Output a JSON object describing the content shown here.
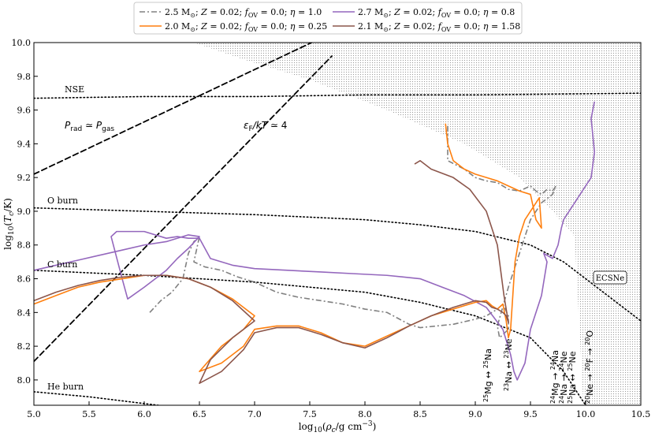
{
  "chart_data": {
    "type": "line",
    "xlabel": "log₁₀(ρc/g cm⁻³)",
    "ylabel": "log₁₀(Tc/K)",
    "xlim": [
      5.0,
      10.5
    ],
    "ylim": [
      7.85,
      10.0
    ],
    "xticks": [
      "5.0",
      "5.5",
      "6.0",
      "6.5",
      "7.0",
      "7.5",
      "8.0",
      "8.5",
      "9.0",
      "9.5",
      "10.0",
      "10.5"
    ],
    "yticks": [
      "8.0",
      "8.2",
      "8.4",
      "8.6",
      "8.8",
      "9.0",
      "9.2",
      "9.4",
      "9.6",
      "9.8",
      "10.0"
    ],
    "legend_position": "top-center",
    "grid": false,
    "series": [
      {
        "name": "2.5 M⊙; Z = 0.02; f_OV = 0.0; η = 1.0",
        "color": "#808080",
        "dash": "7,3,2,3",
        "x": [
          6.05,
          6.15,
          6.25,
          6.35,
          6.4,
          6.45,
          6.5,
          6.45,
          6.55,
          6.7,
          6.85,
          7.0,
          7.2,
          7.4,
          7.6,
          7.8,
          8.0,
          8.2,
          8.4,
          8.5,
          8.8,
          9.0,
          9.1,
          9.15,
          9.2,
          9.25,
          9.3,
          9.3,
          9.22,
          9.2,
          9.3,
          9.4,
          9.5,
          9.6,
          9.7,
          9.73,
          9.7,
          9.65,
          9.6,
          9.55,
          9.5,
          9.4,
          9.3,
          9.2,
          9.1,
          9.0,
          8.9,
          8.75,
          8.75
        ],
        "y": [
          8.4,
          8.47,
          8.52,
          8.6,
          8.75,
          8.82,
          8.85,
          8.7,
          8.67,
          8.65,
          8.61,
          8.58,
          8.52,
          8.49,
          8.47,
          8.45,
          8.42,
          8.4,
          8.33,
          8.31,
          8.33,
          8.36,
          8.38,
          8.4,
          8.42,
          8.45,
          8.38,
          8.3,
          8.25,
          8.32,
          8.55,
          8.75,
          8.95,
          9.05,
          9.1,
          9.15,
          9.12,
          9.13,
          9.1,
          9.12,
          9.15,
          9.12,
          9.13,
          9.17,
          9.18,
          9.2,
          9.25,
          9.3,
          9.52
        ]
      },
      {
        "name": "2.7 M⊙; Z = 0.02; f_OV = 0.0; η = 0.8",
        "color": "#9467bd",
        "dash": "",
        "x": [
          5.0,
          5.2,
          5.4,
          5.6,
          5.8,
          6.0,
          6.2,
          6.4,
          6.5,
          6.4,
          6.3,
          6.2,
          6.0,
          5.85,
          5.8,
          5.7,
          5.75,
          6.0,
          6.2,
          6.3,
          6.4,
          6.45,
          6.5,
          6.6,
          6.8,
          7.0,
          7.3,
          7.6,
          7.9,
          8.2,
          8.5,
          8.7,
          8.9,
          9.1,
          9.25,
          9.32,
          9.35,
          9.38,
          9.45,
          9.5,
          9.6,
          9.65,
          9.62,
          9.7,
          9.75,
          9.78,
          9.8,
          9.85,
          9.9,
          9.95,
          10.0,
          10.05,
          10.08,
          10.05,
          10.08
        ],
        "y": [
          8.65,
          8.68,
          8.71,
          8.74,
          8.77,
          8.8,
          8.82,
          8.86,
          8.85,
          8.78,
          8.72,
          8.65,
          8.55,
          8.48,
          8.6,
          8.85,
          8.88,
          8.88,
          8.84,
          8.85,
          8.84,
          8.84,
          8.84,
          8.72,
          8.68,
          8.66,
          8.65,
          8.64,
          8.63,
          8.62,
          8.6,
          8.55,
          8.5,
          8.43,
          8.3,
          8.15,
          8.05,
          8.0,
          8.1,
          8.3,
          8.5,
          8.7,
          8.75,
          8.72,
          8.8,
          8.9,
          8.95,
          9.0,
          9.05,
          9.1,
          9.15,
          9.2,
          9.35,
          9.55,
          9.65
        ]
      },
      {
        "name": "2.0 M⊙; Z = 0.02; f_OV = 0.0; η = 0.25",
        "color": "#ff7f0e",
        "dash": "",
        "x": [
          5.0,
          5.2,
          5.4,
          5.6,
          5.8,
          6.0,
          6.2,
          6.4,
          6.6,
          6.8,
          7.0,
          6.9,
          6.7,
          6.5,
          6.7,
          6.9,
          7.0,
          7.2,
          7.4,
          7.6,
          7.8,
          8.0,
          8.2,
          8.4,
          8.6,
          8.8,
          9.0,
          9.1,
          9.15,
          9.2,
          9.25,
          9.28,
          9.3,
          9.32,
          9.34,
          9.36,
          9.4,
          9.45,
          9.5,
          9.55,
          9.58,
          9.6,
          9.55,
          9.5,
          9.4,
          9.3,
          9.2,
          9.1,
          9.0,
          8.9,
          8.8,
          8.75,
          8.73
        ],
        "y": [
          8.45,
          8.5,
          8.55,
          8.58,
          8.6,
          8.62,
          8.62,
          8.6,
          8.55,
          8.48,
          8.38,
          8.3,
          8.2,
          8.05,
          8.1,
          8.2,
          8.3,
          8.32,
          8.32,
          8.28,
          8.22,
          8.2,
          8.26,
          8.32,
          8.38,
          8.42,
          8.46,
          8.47,
          8.44,
          8.42,
          8.45,
          8.35,
          8.25,
          8.3,
          8.5,
          8.7,
          8.85,
          8.95,
          9.0,
          9.05,
          9.08,
          8.9,
          8.95,
          9.1,
          9.12,
          9.15,
          9.18,
          9.2,
          9.22,
          9.25,
          9.3,
          9.4,
          9.52
        ]
      },
      {
        "name": "2.1 M⊙; Z = 0.02; f_OV = 0.0; η = 1.58",
        "color": "#8c564b",
        "dash": "",
        "x": [
          5.0,
          5.2,
          5.4,
          5.6,
          5.8,
          6.0,
          6.2,
          6.4,
          6.6,
          6.8,
          7.0,
          6.8,
          6.6,
          6.5,
          6.7,
          6.9,
          7.0,
          7.2,
          7.4,
          7.6,
          7.8,
          8.0,
          8.2,
          8.4,
          8.6,
          8.8,
          9.0,
          9.1,
          9.15,
          9.2,
          9.25,
          9.28,
          9.3,
          9.26,
          9.2,
          9.1,
          8.95,
          8.8,
          8.6,
          8.5,
          8.45
        ],
        "y": [
          8.47,
          8.52,
          8.56,
          8.59,
          8.61,
          8.62,
          8.62,
          8.6,
          8.55,
          8.47,
          8.35,
          8.25,
          8.12,
          7.98,
          8.05,
          8.18,
          8.28,
          8.31,
          8.31,
          8.27,
          8.22,
          8.19,
          8.25,
          8.32,
          8.38,
          8.43,
          8.47,
          8.46,
          8.43,
          8.42,
          8.4,
          8.38,
          8.34,
          8.5,
          8.8,
          9.0,
          9.13,
          9.2,
          9.25,
          9.3,
          9.28
        ]
      }
    ],
    "reference_curves": [
      {
        "color": "#000000",
        "style": "dashed",
        "x": [
          5.0,
          6.0,
          7.0,
          8.0,
          8.6
        ],
        "y": [
          9.22,
          9.53,
          9.84,
          10.15,
          10.34
        ]
      },
      {
        "color": "#000000",
        "style": "dashed",
        "x": [
          5.0,
          6.0,
          7.0,
          7.7
        ],
        "y": [
          8.11,
          8.78,
          9.45,
          9.92
        ]
      },
      {
        "color": "#000000",
        "style": "dotted",
        "x": [
          5.0,
          6.0,
          7.0,
          8.0,
          9.0,
          10.5
        ],
        "y": [
          9.67,
          9.68,
          9.68,
          9.69,
          9.69,
          9.7
        ]
      },
      {
        "color": "#000000",
        "style": "dotted",
        "x": [
          5.0,
          6.0,
          7.0,
          8.0,
          8.5,
          9.0,
          9.5,
          9.8,
          10.0,
          10.3,
          10.5
        ],
        "y": [
          9.02,
          9.0,
          8.98,
          8.95,
          8.92,
          8.88,
          8.8,
          8.7,
          8.6,
          8.45,
          8.35
        ]
      },
      {
        "color": "#000000",
        "style": "dotted",
        "x": [
          5.0,
          6.0,
          7.0,
          8.0,
          8.5,
          9.0,
          9.5,
          9.8,
          10.0
        ],
        "y": [
          8.65,
          8.62,
          8.58,
          8.52,
          8.46,
          8.38,
          8.25,
          8.05,
          7.85
        ]
      },
      {
        "color": "#000000",
        "style": "dotted",
        "x": [
          5.0,
          5.5,
          6.0,
          6.5,
          7.0
        ],
        "y": [
          7.93,
          7.9,
          7.86,
          7.82,
          7.77
        ]
      }
    ],
    "shaded_region": {
      "boundary_x": [
        6.45,
        6.9,
        7.5,
        8.2,
        8.9,
        9.4,
        9.7,
        9.9,
        9.98,
        10.5
      ],
      "boundary_y": [
        10.0,
        9.9,
        9.78,
        9.6,
        9.4,
        9.2,
        9.0,
        8.85,
        7.85,
        7.85
      ]
    },
    "annotations": {
      "nse": "NSE",
      "o_burn": "O burn",
      "c_burn": "C burn",
      "he_burn": "He burn",
      "prad": "Prad ≃ Pgas",
      "ef": "εF/kT ≃ 4",
      "ecsne": "ECSNe",
      "mg25": "25Mg ↔ 25Na",
      "na23": "23Na ↔ 23Ne",
      "mg24": "24Mg → 24Na",
      "na24": "24Na → 24Ne",
      "na25": "25Na ↔ 25Ne",
      "ne20": "20Ne → 20F → 20O"
    }
  }
}
